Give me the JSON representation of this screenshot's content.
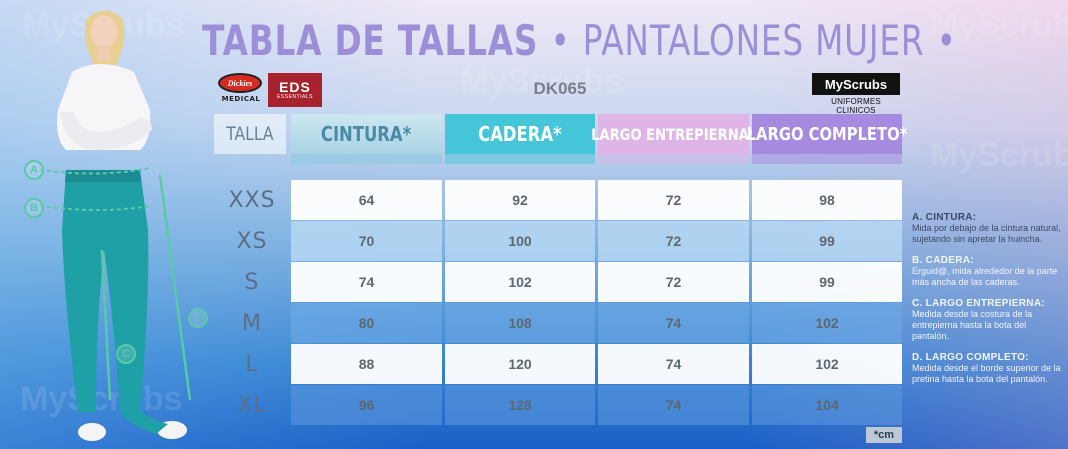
{
  "header": {
    "title_main": "TABLA DE TALLAS",
    "title_sep": "•",
    "title_sub": "PANTALONES MUJER",
    "title_end": "•",
    "icon": "measuring-tape-icon"
  },
  "brands": {
    "dickies": "Dickies",
    "dickies_sub": "MEDICAL",
    "eds": "EDS",
    "eds_sub": "ESSENTIALS",
    "model_code": "DK065",
    "myscrubs": "MyScrubs",
    "myscrubs_tag": "UNIFORMES CLINICOS"
  },
  "table": {
    "headers": {
      "talla": "TALLA",
      "cintura": "CINTURA*",
      "cadera": "CADERA*",
      "entrepierna": "LARGO ENTREPIERNA*",
      "completo": "LARGO COMPLETO*"
    },
    "rows": [
      {
        "size": "XXS",
        "cintura": "64",
        "cadera": "92",
        "entrepierna": "72",
        "completo": "98"
      },
      {
        "size": "XS",
        "cintura": "70",
        "cadera": "100",
        "entrepierna": "72",
        "completo": "99"
      },
      {
        "size": "S",
        "cintura": "74",
        "cadera": "102",
        "entrepierna": "72",
        "completo": "99"
      },
      {
        "size": "M",
        "cintura": "80",
        "cadera": "108",
        "entrepierna": "74",
        "completo": "102"
      },
      {
        "size": "L",
        "cintura": "88",
        "cadera": "120",
        "entrepierna": "74",
        "completo": "102"
      },
      {
        "size": "XL",
        "cintura": "96",
        "cadera": "128",
        "entrepierna": "74",
        "completo": "104"
      }
    ],
    "unit": "*cm"
  },
  "notes": [
    {
      "title": "A. CINTURA:",
      "desc": "Mida por debajo de la cintura natural, sujetando sin apretar la huincha."
    },
    {
      "title": "B. CADERA:",
      "desc": "Erguid@, mida alrededor de la parte más ancha de las caderas."
    },
    {
      "title": "C. LARGO ENTREPIERNA:",
      "desc": "Medida desde la costura de la entrepierna hasta la bota del pantalón."
    },
    {
      "title": "D. LARGO COMPLETO:",
      "desc": "Medida desde el borde superior de la pretina hasta la bota del pantalón."
    }
  ],
  "markers": [
    "A",
    "B",
    "C",
    "D"
  ],
  "colors": {
    "cintura_header": "#a9d4e4",
    "cadera_header": "#45c5d8",
    "entrepierna_header": "#dfb5e8",
    "completo_header": "#a68ae0",
    "title": "#9c8fd8",
    "pants": "#1f9fa6",
    "marker": "#59c9a6"
  },
  "watermark": "MyScrubs"
}
